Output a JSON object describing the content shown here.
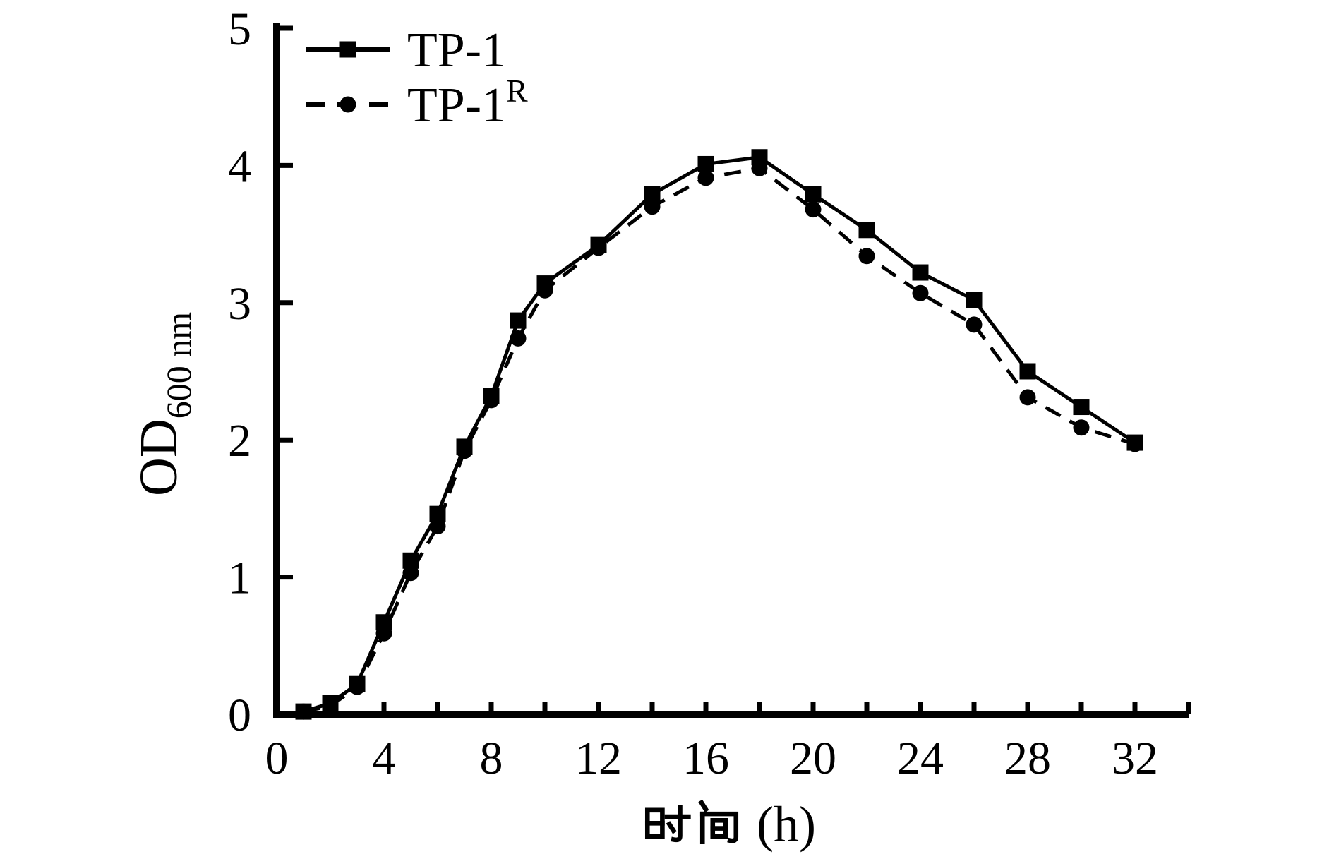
{
  "figure": {
    "background_color": "#ffffff",
    "foreground_color": "#000000"
  },
  "chart_data": {
    "type": "line",
    "title": "",
    "xlabel": "时间 (h)",
    "xlabel_cjk": "时间",
    "xlabel_unit": "(h)",
    "ylabel": "OD",
    "ylabel_subscript": "600 nm",
    "xlim": [
      0,
      34
    ],
    "ylim": [
      0,
      5
    ],
    "grid": false,
    "legend_position": "top-left-inside",
    "line_color": "#000000",
    "background_color": "#ffffff",
    "x_major_tick_values": [
      0,
      4,
      8,
      12,
      16,
      20,
      24,
      28,
      32
    ],
    "x_major_tick_labels": [
      "0",
      "4",
      "8",
      "12",
      "16",
      "20",
      "24",
      "28",
      "32"
    ],
    "x_minor_tick_step": 2,
    "y_tick_values": [
      0,
      1,
      2,
      3,
      4,
      5
    ],
    "y_tick_labels": [
      "0",
      "1",
      "2",
      "3",
      "4",
      "5"
    ],
    "x": [
      1,
      2,
      3,
      4,
      5,
      6,
      7,
      8,
      9,
      10,
      12,
      14,
      16,
      18,
      20,
      22,
      24,
      26,
      28,
      30,
      32
    ],
    "series": [
      {
        "name": "TP-1",
        "name_superscript": "",
        "line_style": "solid",
        "marker": "square",
        "values": [
          0.02,
          0.08,
          0.22,
          0.67,
          1.12,
          1.46,
          1.95,
          2.32,
          2.87,
          3.14,
          3.42,
          3.79,
          4.01,
          4.06,
          3.79,
          3.53,
          3.22,
          3.02,
          2.5,
          2.24,
          1.98
        ]
      },
      {
        "name": "TP-1",
        "name_superscript": "R",
        "line_style": "dashed",
        "marker": "circle",
        "values": [
          0.02,
          0.06,
          0.2,
          0.59,
          1.03,
          1.37,
          1.92,
          2.29,
          2.74,
          3.09,
          3.4,
          3.7,
          3.91,
          3.98,
          3.68,
          3.34,
          3.07,
          2.84,
          2.31,
          2.09,
          1.97
        ]
      }
    ]
  }
}
